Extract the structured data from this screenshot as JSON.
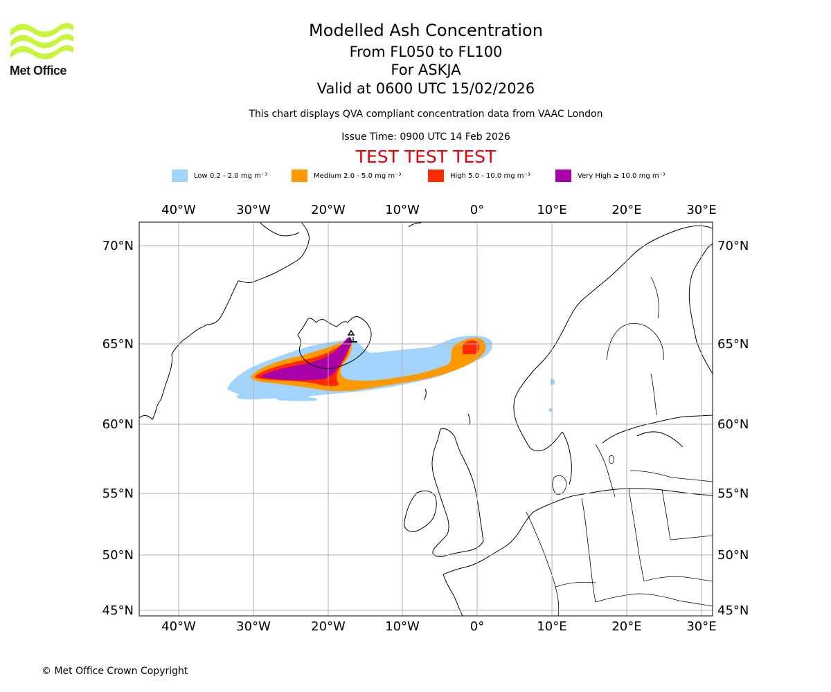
{
  "brand": {
    "name": "Met Office"
  },
  "title": {
    "main": "Modelled Ash Concentration",
    "levels": "From FL050 to FL100",
    "volcano": "For ASKJA",
    "valid": "Valid at 0600 UTC 15/02/2026"
  },
  "description": "This chart displays QVA compliant concentration data from VAAC London",
  "issue_time": "Issue Time: 0900 UTC 14 Feb 2026",
  "test_banner": "TEST TEST TEST",
  "legend": [
    {
      "label": "Low 0.2 - 2.0 mg m⁻³",
      "color": "#a2d4fb"
    },
    {
      "label": "Medium 2.0 - 5.0 mg m⁻³",
      "color": "#ff9900"
    },
    {
      "label": "High 5.0 - 10.0 mg m⁻³",
      "color": "#ff2a00"
    },
    {
      "label": "Very High  ≥  10.0 mg m⁻³",
      "color": "#aa00aa"
    }
  ],
  "map": {
    "lon_labels": [
      "40°W",
      "30°W",
      "20°W",
      "10°W",
      "0°",
      "10°E",
      "20°E",
      "30°E"
    ],
    "lat_labels": [
      "70°N",
      "65°N",
      "60°N",
      "55°N",
      "50°N",
      "45°N"
    ],
    "extent": {
      "lon": [
        -45.3,
        31.2
      ],
      "lat": [
        44.7,
        71.4
      ]
    },
    "grid": true
  },
  "copyright": "© Met Office Crown Copyright"
}
